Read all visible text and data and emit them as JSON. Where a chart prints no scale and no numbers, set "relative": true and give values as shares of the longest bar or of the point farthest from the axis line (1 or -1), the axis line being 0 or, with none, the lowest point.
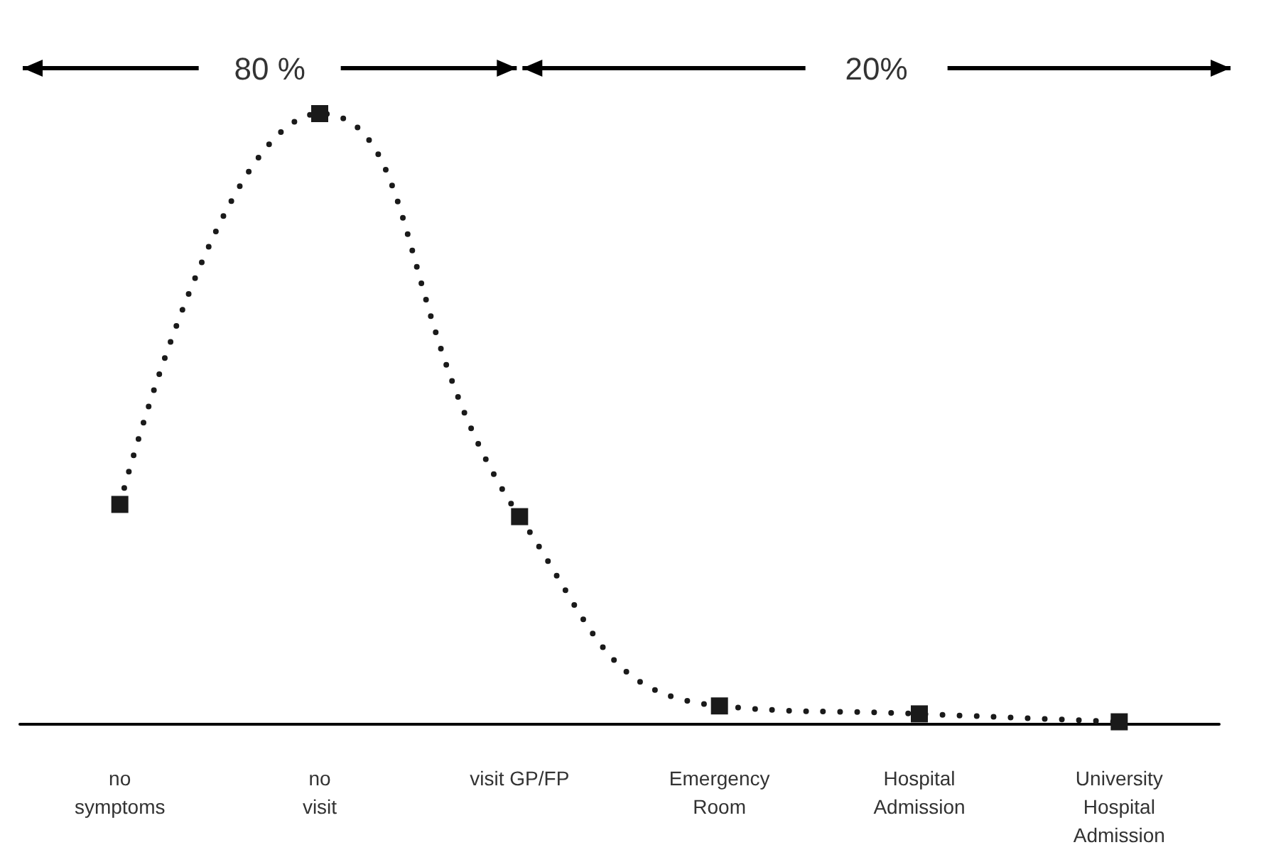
{
  "chart_data": {
    "type": "line",
    "relative": true,
    "categories": [
      "no\nsymptoms",
      "no\nvisit",
      "visit GP/FP",
      "Emergency\nRoom",
      "Hospital\nAdmission",
      "University\nHospital\nAdmission"
    ],
    "series": [
      {
        "color": "#1a1a1a",
        "values": [
          0.36,
          1,
          0.34,
          0.03,
          0.017,
          0.004
        ]
      }
    ],
    "marker": "square",
    "line_style": "dotted",
    "annotations": [
      "80 %",
      "20%"
    ]
  }
}
